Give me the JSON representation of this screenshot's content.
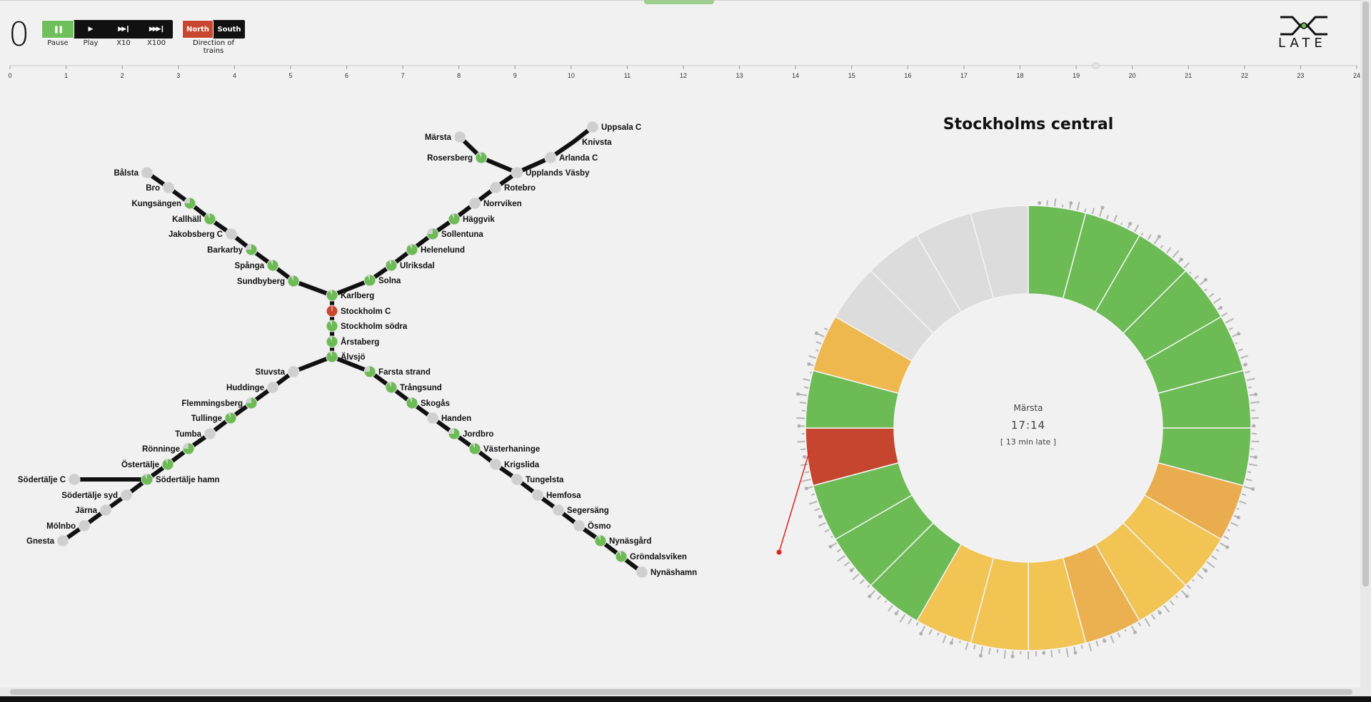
{
  "app": {
    "counter": "0",
    "logo_text": "LATE",
    "accent_green": "#6fbf5a",
    "accent_red": "#c9472f"
  },
  "playback": {
    "buttons": [
      {
        "name": "pause",
        "icon": "pause-icon",
        "glyph": "❚❚",
        "label": "Pause",
        "active": true
      },
      {
        "name": "play",
        "icon": "play-icon",
        "glyph": "▶",
        "label": "Play",
        "active": false
      },
      {
        "name": "x10",
        "icon": "fast-forward-icon",
        "glyph": "▶▶❙",
        "label": "X10",
        "active": false
      },
      {
        "name": "x100",
        "icon": "fast-forward-double-icon",
        "glyph": "▶▶▶❙",
        "label": "X100",
        "active": false
      }
    ]
  },
  "direction": {
    "label": "Direction of trains",
    "north": "North",
    "south": "South",
    "selected": "North"
  },
  "timeline": {
    "ticks": [
      "0",
      "1",
      "2",
      "3",
      "4",
      "5",
      "6",
      "7",
      "8",
      "9",
      "10",
      "11",
      "12",
      "13",
      "14",
      "15",
      "16",
      "17",
      "18",
      "19",
      "20",
      "21",
      "22",
      "23",
      "24"
    ],
    "position_hour": 19.35
  },
  "map": {
    "stations": [
      "Bålsta",
      "Bro",
      "Kungsängen",
      "Kallhäll",
      "Jakobsberg C",
      "Barkarby",
      "Spånga",
      "Sundbyberg",
      "Karlberg",
      "Stockholm C",
      "Stockholm södra",
      "Årstaberg",
      "Älvsjö",
      "Solna",
      "Ulriksdal",
      "Helenelund",
      "Sollentuna",
      "Häggvik",
      "Norrviken",
      "Rotebro",
      "Upplands Väsby",
      "Arlanda C",
      "Knivsta",
      "Uppsala C",
      "Märsta",
      "Rosersberg",
      "Stuvsta",
      "Huddinge",
      "Flemmingsberg",
      "Tullinge",
      "Tumba",
      "Rönninge",
      "Östertälje",
      "Södertälje hamn",
      "Södertälje C",
      "Södertälje syd",
      "Järna",
      "Mölnbo",
      "Gnesta",
      "Farsta strand",
      "Trångsund",
      "Skogås",
      "Handen",
      "Jordbro",
      "Västerhaninge",
      "Krigslida",
      "Tungelsta",
      "Hemfosa",
      "Segersäng",
      "Ösmo",
      "Nynäsgård",
      "Gröndalsviken",
      "Nynäshamn"
    ],
    "selected_station": "Stockholm C"
  },
  "detail": {
    "title": "Stockholms central",
    "center_station": "Märsta",
    "center_time": "17:14",
    "center_delay": "[ 13 min late ]"
  },
  "chart_data": {
    "type": "pie",
    "segments": 24,
    "colors": [
      "#6dbb55",
      "#6dbb55",
      "#6dbb55",
      "#6dbb55",
      "#6dbb55",
      "#6dbb55",
      "#6dbb55",
      "#e9ac4f",
      "#f1c453",
      "#f1c453",
      "#ebb04f",
      "#f1c453",
      "#f1c453",
      "#f1c453",
      "#6dbb55",
      "#6dbb55",
      "#6dbb55",
      "#c5452f",
      "#6dbb55",
      "#efb84f",
      "#dcdcdc",
      "#dcdcdc",
      "#dcdcdc",
      "#dcdcdc"
    ]
  }
}
